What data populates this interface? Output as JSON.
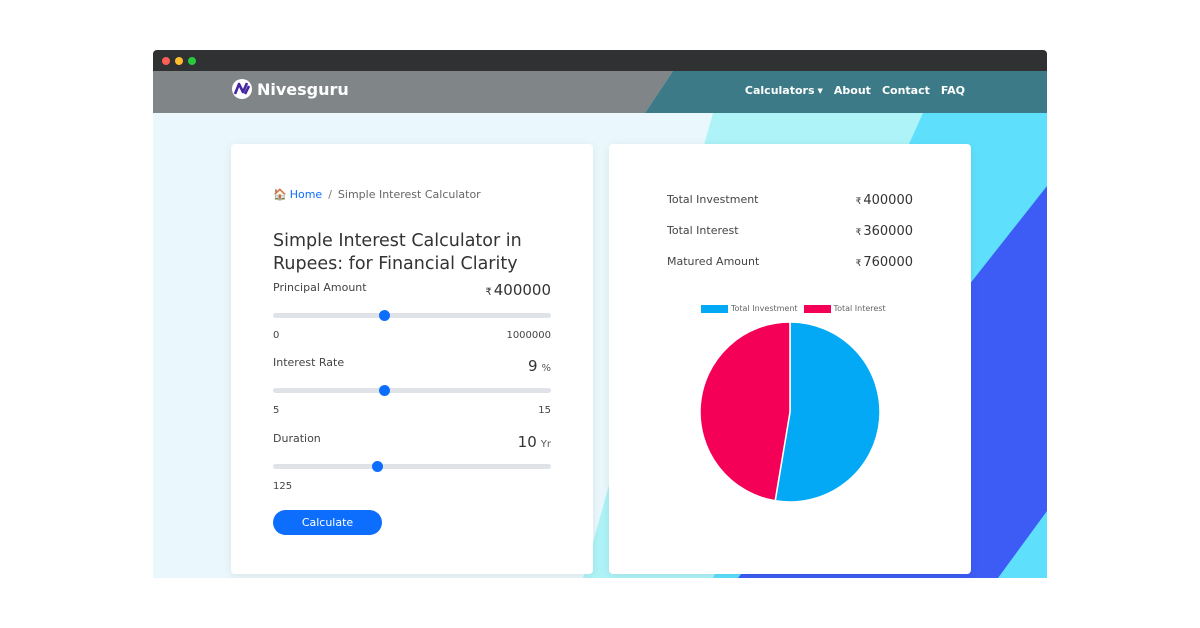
{
  "brand": {
    "name": "Nivesguru",
    "logo_icon": "nivesguru-logo-icon"
  },
  "nav": {
    "calculators": "Calculators",
    "about": "About",
    "contact": "Contact",
    "faq": "FAQ"
  },
  "breadcrumb": {
    "home": "Home",
    "current": "Simple Interest Calculator"
  },
  "page_title": "Simple Interest Calculator in Rupees: for Financial Clarity",
  "fields": {
    "principal": {
      "label": "Principal Amount",
      "currency": "₹",
      "value": "400000",
      "min": "0",
      "max": "1000000",
      "fraction": 0.4
    },
    "rate": {
      "label": "Interest Rate",
      "value": "9",
      "unit": "%",
      "min": "5",
      "max": "15",
      "fraction": 0.4
    },
    "duration": {
      "label": "Duration",
      "value": "10",
      "unit": "Yr",
      "range_text": "125",
      "fraction": 0.376
    }
  },
  "calculate_button": "Calculate",
  "summary": {
    "currency": "₹",
    "investment": {
      "label": "Total Investment",
      "value": "400000"
    },
    "interest": {
      "label": "Total Interest",
      "value": "360000"
    },
    "matured": {
      "label": "Matured Amount",
      "value": "760000"
    }
  },
  "chart_data": {
    "type": "pie",
    "labels": [
      "Total Investment",
      "Total Interest"
    ],
    "values": [
      400000,
      360000
    ],
    "colors": [
      "#03a9f4",
      "#f50057"
    ],
    "legend_position": "top"
  },
  "colors": {
    "accent": "#0d6efd",
    "navbar_left": "#808588",
    "navbar_right": "#3b7a86",
    "bg_cyan": "#5ee0fc",
    "bg_blue": "#3d5cf5"
  }
}
